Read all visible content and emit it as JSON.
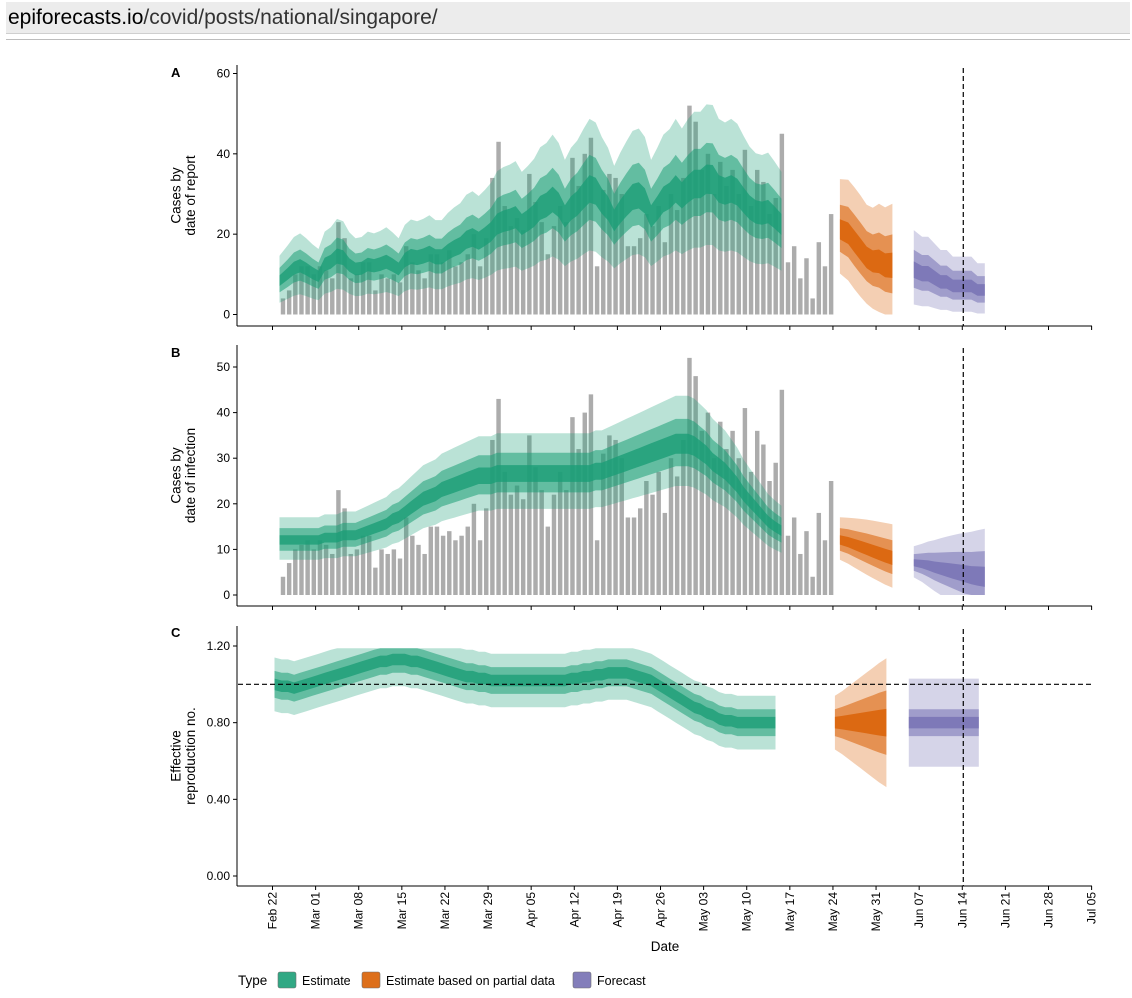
{
  "browser": {
    "url_domain": "epiforecasts.io",
    "url_path": "/covid/posts/national/singapore/"
  },
  "colors": {
    "estimate": "#1b9e77",
    "estimate_partial": "#d95f02",
    "forecast": "#7570b3",
    "bars": "#a3a3a3"
  },
  "chart_data": [
    {
      "panel": "A",
      "type": "bar",
      "ylabel": [
        "Cases by",
        "date of report"
      ],
      "ylim": [
        0,
        60
      ],
      "yticks": [
        "0",
        "20",
        "40",
        "60"
      ],
      "x_start": "Feb 22",
      "observed_daily": [
        4,
        6,
        10,
        12,
        12,
        10,
        12,
        11,
        9,
        23,
        19,
        9,
        10,
        13,
        13,
        6,
        10,
        9,
        10,
        8,
        17,
        13,
        11,
        9,
        15,
        15,
        13,
        16,
        12,
        13,
        15,
        20,
        12,
        19,
        34,
        43,
        27,
        22,
        24,
        21,
        35,
        28,
        23,
        15,
        22,
        27,
        23,
        39,
        32,
        40,
        44,
        12,
        31,
        35,
        34,
        30,
        17,
        17,
        19,
        25,
        22,
        27,
        18,
        30,
        26,
        34,
        52,
        48,
        36,
        40,
        30,
        38,
        32,
        36,
        30,
        41,
        27,
        36,
        33,
        25,
        29,
        45,
        13,
        17,
        9,
        14,
        4,
        18,
        12,
        25
      ],
      "series": [
        {
          "name": "Estimate",
          "type": "band",
          "days": 82,
          "median": [
            8,
            9,
            10,
            11,
            11,
            11,
            10,
            12,
            12,
            13,
            13,
            12,
            12,
            12,
            12,
            11,
            11,
            12,
            12,
            12,
            14,
            14,
            13,
            13,
            14,
            14,
            15,
            16,
            16,
            16,
            17,
            18,
            18,
            20,
            21,
            22,
            22,
            22,
            23,
            22,
            24,
            25,
            26,
            26,
            27,
            26,
            24,
            27,
            28,
            29,
            30,
            29,
            27,
            26,
            24,
            26,
            27,
            28,
            28,
            27,
            24,
            27,
            29,
            29,
            30,
            28,
            30,
            32,
            33,
            34,
            33,
            30,
            29,
            30,
            30,
            29,
            27,
            25,
            24,
            24,
            23,
            22
          ]
        },
        {
          "name": "Estimate based on partial data",
          "type": "band",
          "days": 9,
          "median": [
            21,
            20,
            18,
            16,
            14,
            13,
            13,
            12,
            12
          ]
        },
        {
          "name": "Forecast",
          "type": "band",
          "days": 12,
          "median": [
            11,
            10,
            10,
            9,
            8,
            8,
            7,
            7,
            7,
            7,
            6,
            6
          ]
        }
      ]
    },
    {
      "panel": "B",
      "type": "bar",
      "ylabel": [
        "Cases by",
        "date of infection"
      ],
      "ylim": [
        0,
        50
      ],
      "yticks": [
        "0",
        "10",
        "20",
        "30",
        "40",
        "50"
      ],
      "x_start": "Feb 22",
      "observed_daily": [
        4,
        7,
        10,
        11,
        12,
        10,
        12,
        11,
        9,
        23,
        19,
        9,
        10,
        13,
        13,
        6,
        10,
        9,
        10,
        8,
        17,
        13,
        11,
        9,
        15,
        15,
        13,
        14,
        12,
        13,
        15,
        20,
        12,
        19,
        34,
        43,
        27,
        22,
        24,
        21,
        35,
        28,
        23,
        15,
        22,
        27,
        23,
        39,
        32,
        40,
        44,
        12,
        31,
        35,
        34,
        30,
        17,
        17,
        19,
        25,
        22,
        27,
        18,
        30,
        26,
        34,
        52,
        48,
        36,
        40,
        30,
        38,
        32,
        36,
        30,
        41,
        27,
        36,
        33,
        25,
        29,
        45,
        13,
        17,
        9,
        14,
        4,
        18,
        12,
        25
      ],
      "series": [
        {
          "name": "Estimate",
          "type": "band",
          "days": 82,
          "median": [
            12,
            12,
            12,
            12,
            12,
            12,
            12,
            12.5,
            12.5,
            12.5,
            13,
            13,
            13,
            13.5,
            14,
            14.5,
            15,
            15.5,
            16.5,
            17,
            18,
            19,
            20,
            21,
            21.5,
            22,
            23,
            23.5,
            24,
            24.5,
            25,
            25.5,
            26,
            26,
            26,
            26.5,
            26.5,
            26.5,
            26.5,
            26.5,
            26.5,
            26.5,
            26.5,
            26.5,
            26.5,
            26.5,
            26.5,
            26.5,
            26.5,
            26.5,
            26.5,
            27,
            27,
            27.5,
            28,
            28.5,
            29,
            29.5,
            30,
            30.5,
            31,
            31.5,
            32,
            32.5,
            33,
            33,
            33,
            32.5,
            31.5,
            30.5,
            29,
            28,
            27,
            25.5,
            24,
            22,
            20.5,
            19,
            17.5,
            16,
            15,
            14
          ]
        },
        {
          "name": "Estimate based on partial data",
          "type": "band",
          "days": 9,
          "median": [
            12,
            11.5,
            11,
            10.5,
            10,
            9.5,
            9,
            8.5,
            8
          ]
        },
        {
          "name": "Forecast",
          "type": "band",
          "days": 12,
          "median": [
            7,
            6.7,
            6.4,
            6,
            5.7,
            5.4,
            5.1,
            4.8,
            4.5,
            4.2,
            4,
            3.8
          ]
        }
      ]
    },
    {
      "panel": "C",
      "type": "line",
      "ylabel": [
        "Effective",
        "reproduction no."
      ],
      "ylim": [
        0,
        1.2
      ],
      "yticks": [
        "0.00",
        "0.40",
        "0.80",
        "1.20"
      ],
      "reference_line": 1.0,
      "series": [
        {
          "name": "Estimate",
          "type": "band",
          "days": 82,
          "median": [
            1.0,
            0.99,
            0.99,
            0.98,
            0.99,
            1.0,
            1.01,
            1.02,
            1.03,
            1.04,
            1.05,
            1.06,
            1.07,
            1.08,
            1.09,
            1.1,
            1.11,
            1.12,
            1.12,
            1.13,
            1.13,
            1.13,
            1.12,
            1.12,
            1.11,
            1.1,
            1.09,
            1.08,
            1.07,
            1.06,
            1.05,
            1.04,
            1.04,
            1.03,
            1.03,
            1.02,
            1.02,
            1.02,
            1.02,
            1.02,
            1.02,
            1.02,
            1.02,
            1.02,
            1.02,
            1.02,
            1.02,
            1.02,
            1.03,
            1.03,
            1.04,
            1.04,
            1.05,
            1.05,
            1.06,
            1.06,
            1.06,
            1.06,
            1.05,
            1.04,
            1.03,
            1.02,
            1.0,
            0.98,
            0.96,
            0.94,
            0.92,
            0.9,
            0.88,
            0.87,
            0.85,
            0.84,
            0.82,
            0.81,
            0.81,
            0.8,
            0.8,
            0.8,
            0.8,
            0.8,
            0.8,
            0.8
          ]
        },
        {
          "name": "Estimate based on partial data",
          "type": "band",
          "days": 9,
          "median": [
            0.8,
            0.8,
            0.8,
            0.8,
            0.8,
            0.8,
            0.8,
            0.8,
            0.8
          ]
        },
        {
          "name": "Forecast",
          "type": "band",
          "days": 12,
          "median": [
            0.8,
            0.8,
            0.8,
            0.8,
            0.8,
            0.8,
            0.8,
            0.8,
            0.8,
            0.8,
            0.8,
            0.8
          ]
        }
      ]
    }
  ],
  "x_axis": {
    "title": "Date",
    "ticks": [
      "Feb 22",
      "Mar 01",
      "Mar 08",
      "Mar 15",
      "Mar 22",
      "Mar 29",
      "Apr 05",
      "Apr 12",
      "Apr 19",
      "Apr 26",
      "May 03",
      "May 10",
      "May 17",
      "May 24",
      "May 31",
      "Jun 07",
      "Jun 14",
      "Jun 21",
      "Jun 28",
      "Jul 05"
    ]
  },
  "vline_date": "Jun 14",
  "legend": {
    "title": "Type",
    "items": [
      "Estimate",
      "Estimate based on partial data",
      "Forecast"
    ]
  }
}
